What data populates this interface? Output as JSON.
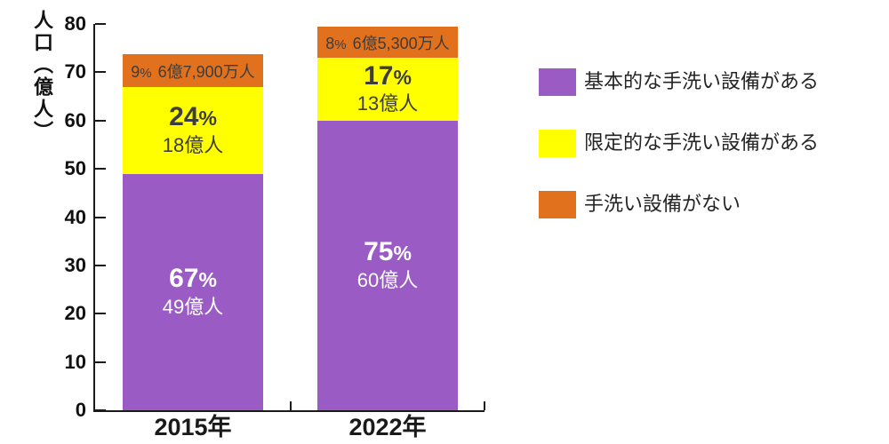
{
  "chart_data": {
    "type": "bar",
    "stacked": true,
    "title": "",
    "xlabel": "",
    "ylabel": "人口（億人）",
    "ylim": [
      0,
      80
    ],
    "yticks": [
      0,
      10,
      20,
      30,
      40,
      50,
      60,
      70,
      80
    ],
    "grid": false,
    "categories": [
      "2015年",
      "2022年"
    ],
    "series": [
      {
        "key": "basic-handwashing",
        "name": "基本的な手洗い設備がある",
        "color": "#9a5cc4",
        "values": [
          49,
          60
        ],
        "label_layout": "stacked",
        "annotations": [
          {
            "pct": "67%",
            "count": "49億人"
          },
          {
            "pct": "75%",
            "count": "60億人"
          }
        ]
      },
      {
        "key": "limited-handwashing",
        "name": "限定的な手洗い設備がある",
        "color": "#ffff00",
        "values": [
          18,
          13
        ],
        "label_layout": "stacked",
        "annotations": [
          {
            "pct": "24%",
            "count": "18億人"
          },
          {
            "pct": "17%",
            "count": "13億人"
          }
        ]
      },
      {
        "key": "no-handwashing",
        "name": "手洗い設備がない",
        "color": "#e2711d",
        "values": [
          6.79,
          6.53
        ],
        "label_layout": "inline",
        "annotations": [
          {
            "pct": "9%",
            "count": "6億7,900万人"
          },
          {
            "pct": "8%",
            "count": "6億5,300万人"
          }
        ]
      }
    ],
    "legend": {
      "position": "right",
      "items": [
        {
          "label": "基本的な手洗い設備がある",
          "color": "#9a5cc4"
        },
        {
          "label": "限定的な手洗い設備がある",
          "color": "#ffff00"
        },
        {
          "label": "手洗い設備がない",
          "color": "#e2711d"
        }
      ]
    }
  },
  "colors": {
    "purple": "#9a5cc4",
    "yellow": "#ffff00",
    "orange": "#e2711d",
    "axis": "#1a1a1a",
    "dark_text": "#3d3d3d",
    "light_text": "#ffffff"
  }
}
